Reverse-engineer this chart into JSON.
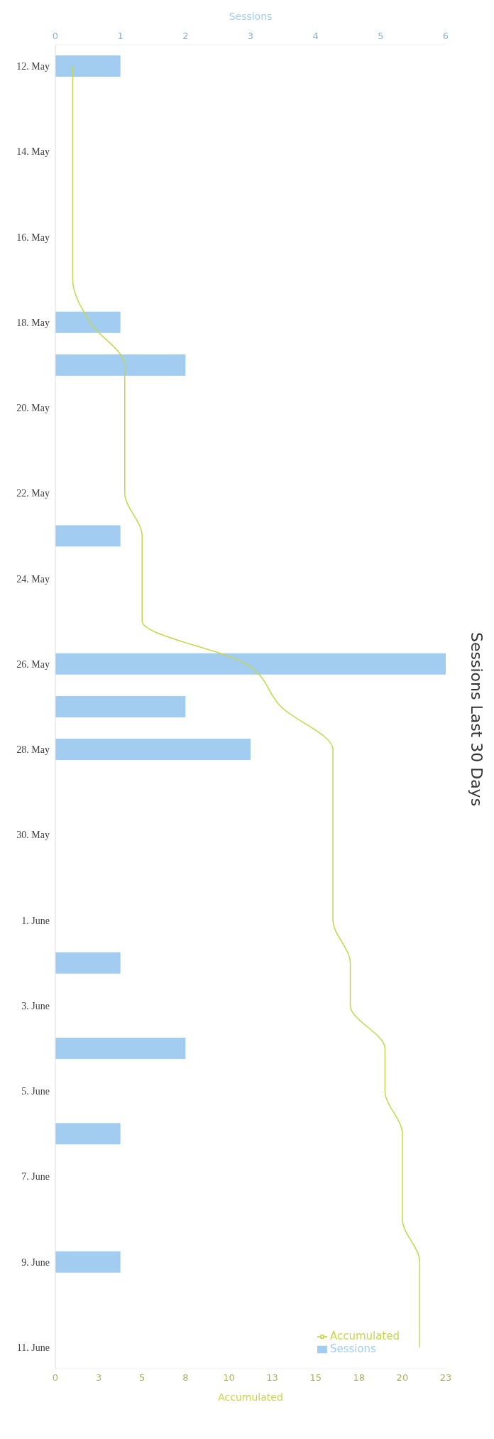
{
  "chart_data": {
    "type": "bar",
    "orientation": "horizontal",
    "title": "Sessions Last 30 Days",
    "categories": [
      "12. May",
      null,
      "14. May",
      null,
      "16. May",
      null,
      "18. May",
      null,
      "20. May",
      null,
      "22. May",
      null,
      "24. May",
      null,
      "26. May",
      null,
      "28. May",
      null,
      "30. May",
      null,
      "1. June",
      null,
      "3. June",
      null,
      "5. June",
      null,
      "7. June",
      null,
      "9. June",
      null,
      "11. June"
    ],
    "series": [
      {
        "name": "Sessions",
        "color": "#a3cdf0",
        "values": [
          1,
          0,
          0,
          0,
          0,
          0,
          1,
          2,
          0,
          0,
          0,
          1,
          0,
          0,
          6,
          2,
          3,
          0,
          0,
          0,
          0,
          1,
          0,
          2,
          0,
          1,
          0,
          0,
          1,
          0,
          0
        ]
      },
      {
        "name": "Accumulated",
        "type": "line",
        "axis": "x2",
        "color": "#c5d64a",
        "values": [
          1,
          1,
          1,
          1,
          1,
          1,
          2,
          4,
          4,
          4,
          4,
          5,
          5,
          5,
          11,
          13,
          16,
          16,
          16,
          16,
          16,
          17,
          17,
          19,
          19,
          20,
          20,
          20,
          21,
          21,
          21
        ]
      }
    ],
    "xlabel": "Sessions",
    "x2label": "Accumulated",
    "xlim": [
      0,
      6
    ],
    "xticks": [
      0,
      1,
      2,
      3,
      4,
      5,
      6
    ],
    "x2lim": [
      0,
      22.5
    ],
    "x2ticks": [
      0,
      {
        "value": 2.5,
        "label": "3"
      },
      5,
      {
        "value": 7.5,
        "label": "8"
      },
      10,
      {
        "value": 12.5,
        "label": "13"
      },
      15,
      {
        "value": 17.5,
        "label": "18"
      },
      20,
      {
        "value": 22.5,
        "label": "23"
      }
    ],
    "legend": "bottom right",
    "grid": false,
    "marker": "none"
  }
}
